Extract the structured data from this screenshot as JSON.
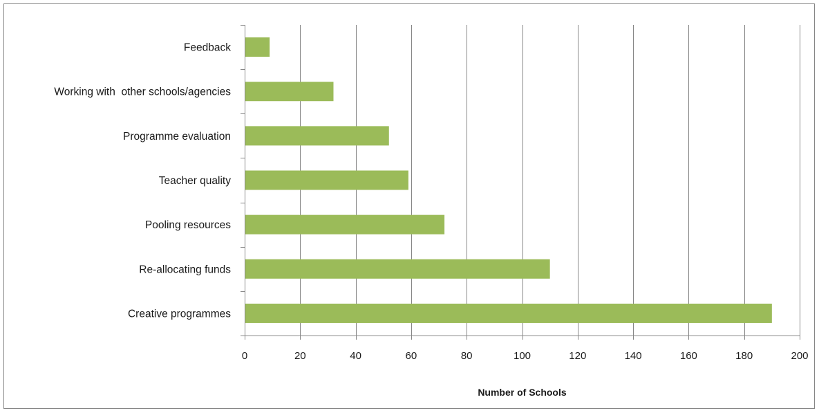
{
  "chart_data": {
    "type": "bar",
    "orientation": "horizontal",
    "categories": [
      "Feedback",
      "Working with  other schools/agencies",
      "Programme evaluation",
      "Teacher quality",
      "Pooling resources",
      "Re-allocating funds",
      "Creative programmes"
    ],
    "values": [
      9,
      32,
      52,
      59,
      72,
      110,
      190
    ],
    "xlabel": "Number of Schools",
    "ylabel": "",
    "xlim": [
      0,
      200
    ],
    "xticks": [
      0,
      20,
      40,
      60,
      80,
      100,
      120,
      140,
      160,
      180,
      200
    ],
    "grid": "vertical",
    "bar_color": "#9BBB59",
    "legend": "none"
  },
  "colors": {
    "bar": "#9BBB59",
    "grid": "#868686",
    "frame": "#868686"
  }
}
